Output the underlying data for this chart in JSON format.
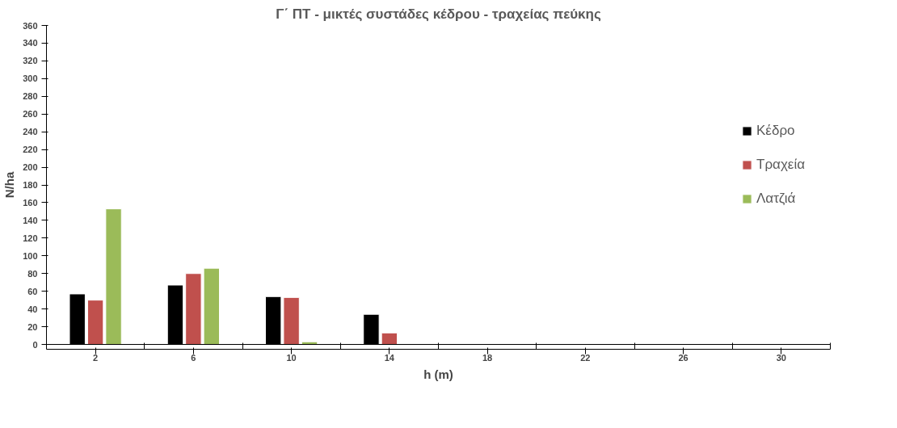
{
  "chart_data": {
    "type": "bar",
    "title": "Γ΄ ΠΤ - μικτές συστάδες κέδρου - τραχείας πεύκης",
    "xlabel": "h (m)",
    "ylabel": "N/ha",
    "categories": [
      "2",
      "6",
      "10",
      "14",
      "18",
      "22",
      "26",
      "30"
    ],
    "series": [
      {
        "name": "Κέδρο",
        "color": "#000000",
        "values": [
          57,
          67,
          54,
          34,
          null,
          null,
          null,
          null
        ]
      },
      {
        "name": "Τραχεία",
        "color": "#c0504d",
        "values": [
          50,
          80,
          53,
          13,
          null,
          null,
          null,
          null
        ]
      },
      {
        "name": "Λατζιά",
        "color": "#9bbb59",
        "values": [
          153,
          86,
          3,
          null,
          null,
          null,
          null,
          null
        ]
      }
    ],
    "ylim": [
      0,
      360
    ],
    "yticks": [
      0,
      20,
      40,
      60,
      80,
      100,
      120,
      140,
      160,
      180,
      200,
      220,
      240,
      260,
      280,
      300,
      320,
      340,
      360
    ],
    "grid": false,
    "legend": "right"
  }
}
